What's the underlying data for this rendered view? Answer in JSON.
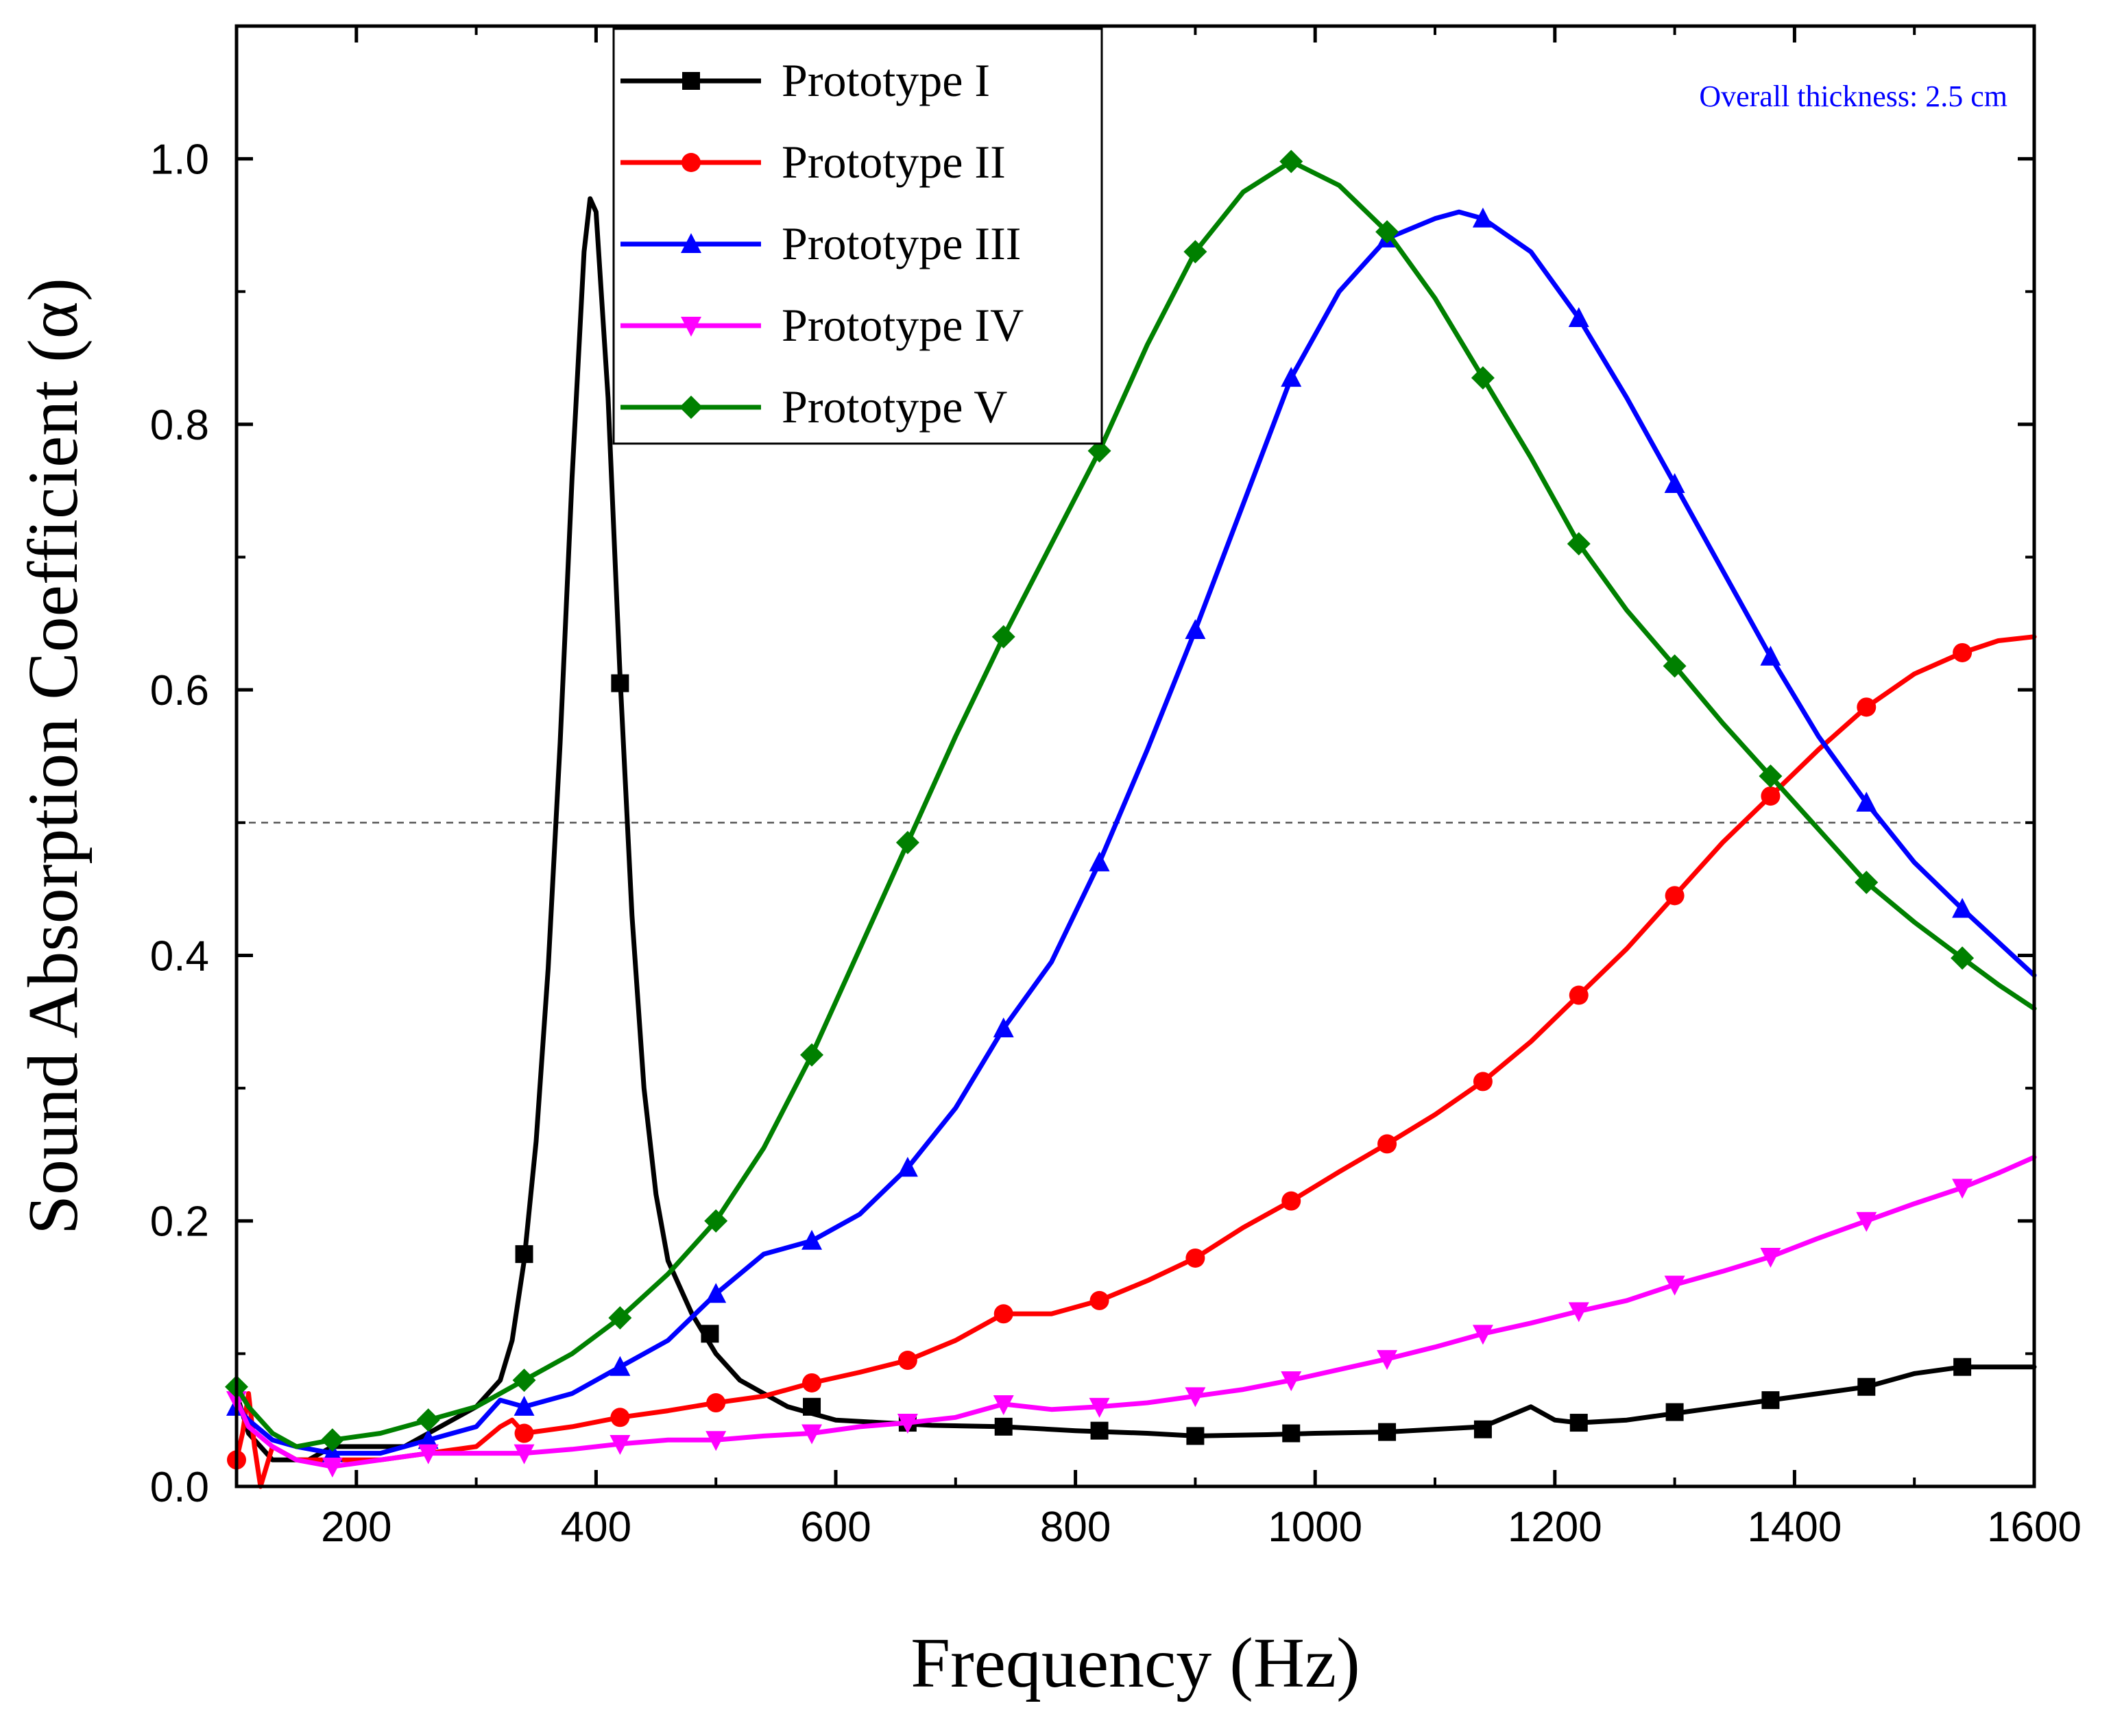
{
  "chart_data": {
    "type": "line",
    "title": "",
    "xlabel": "Frequency (Hz)",
    "ylabel": "Sound Absorption Coefficient (α)",
    "xlim": [
      100,
      1600
    ],
    "ylim": [
      0.0,
      1.1
    ],
    "xticks": [
      200,
      400,
      600,
      800,
      1000,
      1200,
      1400,
      1600
    ],
    "yticks": [
      0.0,
      0.2,
      0.4,
      0.6,
      0.8,
      1.0
    ],
    "ytick_labels": [
      "0.0",
      "0.2",
      "0.4",
      "0.6",
      "0.8",
      "1.0"
    ],
    "annotation": "Overall thickness: 2.5 cm",
    "annotation_color": "#0000ff",
    "reference_line": 0.5,
    "legend_position": "top-center",
    "series": [
      {
        "name": "Prototype I",
        "color": "#000000",
        "marker": "square",
        "x": [
          100,
          110,
          120,
          130,
          140,
          160,
          180,
          200,
          220,
          240,
          260,
          280,
          300,
          320,
          330,
          340,
          350,
          360,
          370,
          380,
          390,
          395,
          400,
          410,
          420,
          430,
          440,
          450,
          460,
          480,
          500,
          520,
          540,
          560,
          580,
          600,
          640,
          680,
          740,
          800,
          860,
          900,
          960,
          1000,
          1060,
          1100,
          1140,
          1180,
          1200,
          1220,
          1260,
          1300,
          1340,
          1380,
          1420,
          1460,
          1500,
          1540,
          1570,
          1600
        ],
        "y": [
          0.07,
          0.04,
          0.03,
          0.02,
          0.02,
          0.02,
          0.03,
          0.03,
          0.03,
          0.03,
          0.04,
          0.05,
          0.06,
          0.08,
          0.11,
          0.17,
          0.26,
          0.39,
          0.56,
          0.76,
          0.93,
          0.97,
          0.96,
          0.82,
          0.61,
          0.43,
          0.3,
          0.22,
          0.17,
          0.13,
          0.1,
          0.08,
          0.07,
          0.06,
          0.055,
          0.05,
          0.048,
          0.046,
          0.045,
          0.042,
          0.04,
          0.038,
          0.039,
          0.04,
          0.041,
          0.043,
          0.045,
          0.06,
          0.05,
          0.048,
          0.05,
          0.055,
          0.06,
          0.065,
          0.07,
          0.075,
          0.085,
          0.09,
          0.09,
          0.09
        ],
        "marker_x": [
          340,
          420,
          495,
          580,
          660,
          740,
          820,
          900,
          980,
          1060,
          1140,
          1220,
          1300,
          1380,
          1460,
          1540
        ],
        "marker_y": [
          0.175,
          0.605,
          0.115,
          0.06,
          0.048,
          0.045,
          0.042,
          0.038,
          0.04,
          0.041,
          0.043,
          0.048,
          0.056,
          0.065,
          0.075,
          0.09
        ]
      },
      {
        "name": "Prototype II",
        "color": "#ff0000",
        "marker": "circle",
        "x": [
          100,
          105,
          110,
          115,
          120,
          130,
          150,
          180,
          220,
          260,
          300,
          320,
          330,
          340,
          380,
          420,
          460,
          500,
          540,
          580,
          620,
          660,
          700,
          740,
          780,
          820,
          860,
          900,
          940,
          980,
          1020,
          1060,
          1100,
          1140,
          1180,
          1220,
          1260,
          1300,
          1340,
          1380,
          1420,
          1460,
          1500,
          1540,
          1570,
          1600
        ],
        "y": [
          0.02,
          0.04,
          0.07,
          0.03,
          0.0,
          0.03,
          0.02,
          0.02,
          0.02,
          0.025,
          0.03,
          0.045,
          0.05,
          0.04,
          0.045,
          0.052,
          0.057,
          0.063,
          0.068,
          0.078,
          0.086,
          0.095,
          0.11,
          0.13,
          0.13,
          0.14,
          0.155,
          0.172,
          0.195,
          0.215,
          0.237,
          0.258,
          0.28,
          0.305,
          0.335,
          0.37,
          0.405,
          0.445,
          0.485,
          0.52,
          0.555,
          0.587,
          0.612,
          0.628,
          0.637,
          0.64
        ],
        "marker_x": [
          100,
          340,
          420,
          500,
          580,
          660,
          740,
          820,
          900,
          980,
          1060,
          1140,
          1220,
          1300,
          1380,
          1460,
          1540
        ],
        "marker_y": [
          0.02,
          0.04,
          0.052,
          0.063,
          0.078,
          0.095,
          0.13,
          0.14,
          0.172,
          0.215,
          0.258,
          0.305,
          0.37,
          0.445,
          0.52,
          0.587,
          0.628
        ]
      },
      {
        "name": "Prototype III",
        "color": "#0000ff",
        "marker": "triangle-up",
        "x": [
          100,
          110,
          130,
          150,
          180,
          220,
          260,
          300,
          320,
          340,
          380,
          420,
          460,
          500,
          540,
          580,
          620,
          660,
          700,
          740,
          780,
          820,
          860,
          900,
          940,
          980,
          1020,
          1060,
          1100,
          1120,
          1140,
          1180,
          1220,
          1260,
          1300,
          1340,
          1380,
          1420,
          1460,
          1500,
          1540,
          1570,
          1600
        ],
        "y": [
          0.06,
          0.05,
          0.035,
          0.03,
          0.025,
          0.025,
          0.035,
          0.045,
          0.065,
          0.06,
          0.07,
          0.09,
          0.11,
          0.145,
          0.175,
          0.185,
          0.205,
          0.24,
          0.285,
          0.345,
          0.395,
          0.47,
          0.555,
          0.645,
          0.74,
          0.835,
          0.9,
          0.94,
          0.955,
          0.96,
          0.955,
          0.93,
          0.88,
          0.82,
          0.755,
          0.69,
          0.625,
          0.565,
          0.515,
          0.47,
          0.435,
          0.41,
          0.385
        ],
        "marker_x": [
          100,
          180,
          260,
          340,
          420,
          500,
          580,
          660,
          740,
          820,
          900,
          980,
          1060,
          1140,
          1220,
          1300,
          1380,
          1460,
          1540
        ],
        "marker_y": [
          0.06,
          0.025,
          0.035,
          0.06,
          0.09,
          0.145,
          0.185,
          0.24,
          0.345,
          0.47,
          0.645,
          0.835,
          0.94,
          0.955,
          0.88,
          0.755,
          0.625,
          0.515,
          0.435
        ]
      },
      {
        "name": "Prototype IV",
        "color": "#ff00ff",
        "marker": "triangle-down",
        "x": [
          100,
          110,
          130,
          150,
          180,
          220,
          260,
          300,
          340,
          380,
          420,
          460,
          500,
          540,
          580,
          620,
          660,
          700,
          740,
          780,
          820,
          860,
          900,
          940,
          980,
          1020,
          1060,
          1100,
          1140,
          1180,
          1220,
          1260,
          1300,
          1340,
          1380,
          1420,
          1460,
          1500,
          1540,
          1570,
          1600
        ],
        "y": [
          0.065,
          0.045,
          0.03,
          0.02,
          0.015,
          0.02,
          0.025,
          0.025,
          0.025,
          0.028,
          0.032,
          0.035,
          0.035,
          0.038,
          0.04,
          0.045,
          0.048,
          0.052,
          0.062,
          0.058,
          0.06,
          0.063,
          0.068,
          0.073,
          0.08,
          0.088,
          0.096,
          0.105,
          0.115,
          0.123,
          0.132,
          0.14,
          0.152,
          0.162,
          0.173,
          0.187,
          0.2,
          0.213,
          0.225,
          0.236,
          0.248
        ],
        "marker_x": [
          100,
          180,
          260,
          340,
          420,
          500,
          580,
          660,
          740,
          820,
          900,
          980,
          1060,
          1140,
          1220,
          1300,
          1380,
          1460,
          1540
        ],
        "marker_y": [
          0.065,
          0.015,
          0.025,
          0.025,
          0.032,
          0.035,
          0.04,
          0.048,
          0.062,
          0.06,
          0.068,
          0.08,
          0.096,
          0.115,
          0.132,
          0.152,
          0.173,
          0.2,
          0.225
        ]
      },
      {
        "name": "Prototype V",
        "color": "#008000",
        "marker": "diamond",
        "x": [
          100,
          110,
          130,
          150,
          180,
          220,
          260,
          300,
          340,
          380,
          420,
          460,
          500,
          540,
          580,
          620,
          660,
          700,
          740,
          780,
          820,
          860,
          900,
          940,
          980,
          1020,
          1060,
          1100,
          1140,
          1180,
          1220,
          1260,
          1300,
          1340,
          1380,
          1420,
          1460,
          1500,
          1540,
          1570,
          1600
        ],
        "y": [
          0.075,
          0.06,
          0.04,
          0.03,
          0.035,
          0.04,
          0.05,
          0.06,
          0.08,
          0.1,
          0.127,
          0.16,
          0.2,
          0.255,
          0.325,
          0.405,
          0.485,
          0.565,
          0.64,
          0.71,
          0.78,
          0.86,
          0.93,
          0.975,
          0.998,
          0.98,
          0.945,
          0.895,
          0.835,
          0.775,
          0.71,
          0.66,
          0.618,
          0.575,
          0.535,
          0.495,
          0.455,
          0.425,
          0.398,
          0.378,
          0.36
        ],
        "marker_x": [
          100,
          180,
          260,
          340,
          420,
          500,
          580,
          660,
          740,
          820,
          900,
          980,
          1060,
          1140,
          1220,
          1300,
          1380,
          1460,
          1540
        ],
        "marker_y": [
          0.075,
          0.035,
          0.05,
          0.08,
          0.127,
          0.2,
          0.325,
          0.485,
          0.64,
          0.78,
          0.93,
          0.998,
          0.945,
          0.835,
          0.71,
          0.618,
          0.535,
          0.455,
          0.398
        ]
      }
    ]
  }
}
